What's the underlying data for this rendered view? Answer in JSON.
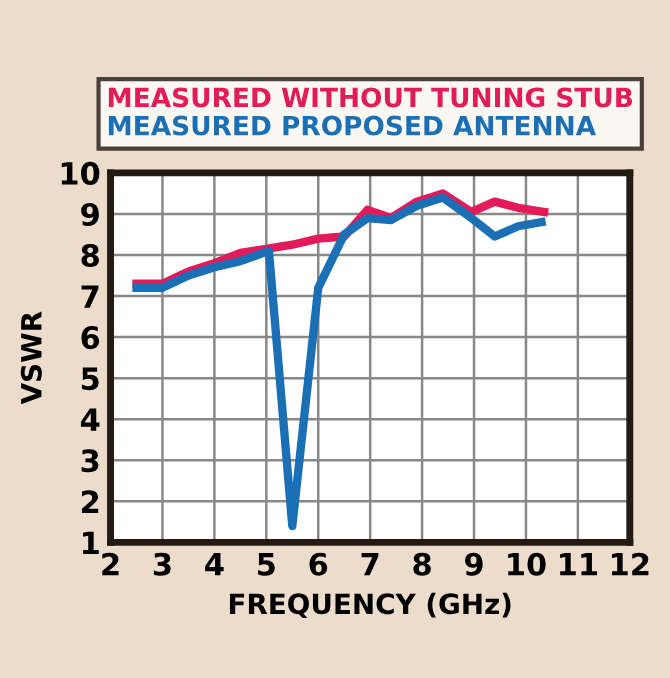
{
  "chart_data": {
    "type": "line",
    "xlabel": "FREQUENCY (GHz)",
    "ylabel": "VSWR",
    "xlim": [
      2,
      12
    ],
    "xticks": [
      2,
      3,
      4,
      5,
      6,
      7,
      8,
      9,
      10,
      11,
      12
    ],
    "ylim": [
      1,
      10
    ],
    "yticks": [
      1,
      2,
      3,
      4,
      5,
      6,
      7,
      8,
      9,
      10
    ],
    "grid": true,
    "legend": "top",
    "marker": "none",
    "line_style": "solid",
    "series": [
      {
        "name": "MEASURED WITHOUT TUNING STUB",
        "color": "#e31b5a",
        "x": [
          2.5,
          3,
          3.5,
          4,
          4.5,
          5,
          5.5,
          6,
          6.5,
          6.95,
          7.4,
          7.9,
          8.4,
          8.95,
          9.4,
          9.85,
          10.35
        ],
        "values": [
          7.3,
          7.3,
          7.6,
          7.8,
          8.05,
          8.15,
          8.25,
          8.4,
          8.45,
          9.1,
          8.9,
          9.3,
          9.5,
          9.05,
          9.3,
          9.15,
          9.05
        ]
      },
      {
        "name": "MEASURED PROPOSED ANTENNA",
        "color": "#1a6fb5",
        "x": [
          2.5,
          3,
          3.5,
          4,
          4.5,
          5.05,
          5.5,
          6,
          6.5,
          6.95,
          7.4,
          7.9,
          8.4,
          8.9,
          9.4,
          9.85,
          10.3
        ],
        "values": [
          7.2,
          7.2,
          7.5,
          7.7,
          7.85,
          8.1,
          1.4,
          7.2,
          8.5,
          8.9,
          8.85,
          9.2,
          9.4,
          8.95,
          8.45,
          8.7,
          8.8
        ]
      }
    ]
  }
}
